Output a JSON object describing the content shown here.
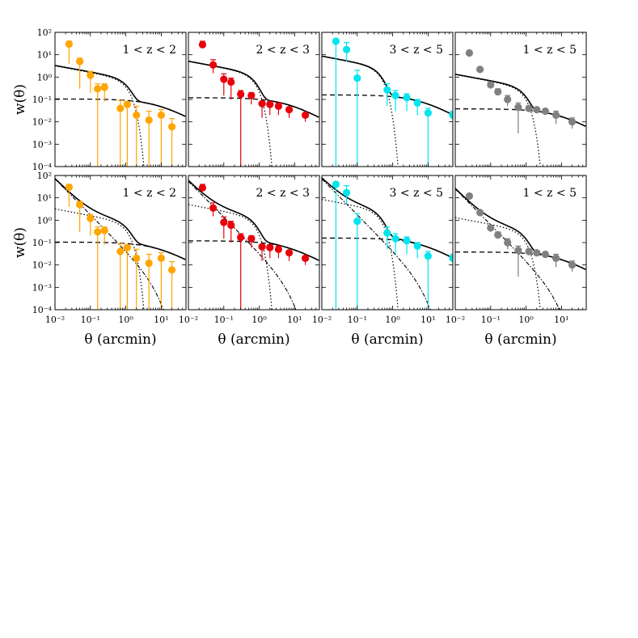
{
  "figure": {
    "xlabel": "θ (arcmin)",
    "ylabel": "w(θ)",
    "xscale": "log",
    "yscale": "log",
    "xlim": [
      0.01,
      50
    ],
    "ylim": [
      0.0001,
      100
    ],
    "x_tick_labels": [
      "10⁻²",
      "10⁻¹",
      "10⁰",
      "10¹"
    ],
    "y_tick_labels": [
      "10⁻⁴",
      "10⁻³",
      "10⁻²",
      "10⁻¹",
      "10⁰",
      "10¹",
      "10²"
    ]
  },
  "chart_data": [
    {
      "type": "scatter",
      "row": 0,
      "col": 0,
      "label": "1 < z < 2",
      "color": "#ffa500",
      "x": [
        0.025,
        0.05,
        0.1,
        0.16,
        0.25,
        0.7,
        1.1,
        2.0,
        4.5,
        10,
        20
      ],
      "y": [
        30,
        5,
        1.2,
        0.3,
        0.35,
        0.04,
        0.06,
        0.02,
        0.012,
        0.02,
        0.006
      ],
      "err_lo_to": [
        4,
        0.3,
        0.2,
        0.0001,
        0.08,
        0.0001,
        0.0001,
        0.0001,
        0.0001,
        0.0001,
        0.0001
      ],
      "err_hi_to": [
        40,
        7,
        1.8,
        0.5,
        0.5,
        0.09,
        0.08,
        0.05,
        0.03,
        0.035,
        0.014
      ],
      "curves": [
        "total",
        "one-halo",
        "two-halo"
      ]
    },
    {
      "type": "scatter",
      "row": 0,
      "col": 1,
      "label": "2 < z < 3",
      "color": "#e8000b",
      "x": [
        0.025,
        0.05,
        0.1,
        0.16,
        0.3,
        0.6,
        1.2,
        2.0,
        3.5,
        7,
        20
      ],
      "y": [
        28,
        3.5,
        0.8,
        0.6,
        0.17,
        0.15,
        0.065,
        0.06,
        0.05,
        0.035,
        0.02
      ],
      "err_lo_to": [
        20,
        1.5,
        0.15,
        0.1,
        0.0001,
        0.06,
        0.015,
        0.02,
        0.02,
        0.015,
        0.01
      ],
      "err_hi_to": [
        40,
        6,
        1.4,
        0.9,
        0.25,
        0.2,
        0.08,
        0.08,
        0.07,
        0.045,
        0.025
      ],
      "curves": [
        "total",
        "one-halo",
        "two-halo"
      ]
    },
    {
      "type": "scatter",
      "row": 0,
      "col": 2,
      "label": "3 < z < 5",
      "color": "#00e5ee",
      "x": [
        0.025,
        0.05,
        0.1,
        0.7,
        1.2,
        2.5,
        5,
        10,
        50
      ],
      "y": [
        40,
        17,
        0.9,
        0.27,
        0.15,
        0.12,
        0.07,
        0.025,
        0.02
      ],
      "err_lo_to": [
        0.0001,
        5,
        0.0001,
        0.05,
        0.03,
        0.03,
        0.02,
        0.0001,
        0.0001
      ],
      "err_hi_to": [
        45,
        35,
        2,
        0.5,
        0.25,
        0.18,
        0.1,
        0.04,
        0.03
      ],
      "curves": [
        "total",
        "one-halo",
        "two-halo"
      ]
    },
    {
      "type": "scatter",
      "row": 0,
      "col": 3,
      "label": "1 < z < 5",
      "color": "#808080",
      "x": [
        0.025,
        0.05,
        0.1,
        0.16,
        0.3,
        0.6,
        1.2,
        2.0,
        3.5,
        7,
        20
      ],
      "y": [
        12,
        2.2,
        0.45,
        0.22,
        0.1,
        0.045,
        0.04,
        0.035,
        0.03,
        0.02,
        0.01
      ],
      "err_lo_to": [
        12,
        2.2,
        0.3,
        0.15,
        0.05,
        0.003,
        0.03,
        0.035,
        0.03,
        0.008,
        0.005
      ],
      "err_hi_to": [
        12,
        2.2,
        0.6,
        0.3,
        0.15,
        0.07,
        0.05,
        0.035,
        0.03,
        0.03,
        0.015
      ],
      "curves": [
        "total",
        "one-halo",
        "two-halo"
      ]
    },
    {
      "type": "scatter",
      "row": 1,
      "col": 0,
      "label": "1 < z < 2",
      "color": "#ffa500",
      "x": [
        0.025,
        0.05,
        0.1,
        0.16,
        0.25,
        0.7,
        1.1,
        2.0,
        4.5,
        10,
        20
      ],
      "y": [
        30,
        5,
        1.2,
        0.3,
        0.35,
        0.04,
        0.06,
        0.02,
        0.012,
        0.02,
        0.006
      ],
      "err_lo_to": [
        4,
        0.3,
        0.2,
        0.0001,
        0.08,
        0.0001,
        0.0001,
        0.0001,
        0.0001,
        0.0001,
        0.0001
      ],
      "err_hi_to": [
        40,
        7,
        1.8,
        0.5,
        0.5,
        0.09,
        0.08,
        0.05,
        0.03,
        0.035,
        0.014
      ],
      "curves": [
        "total",
        "one-halo",
        "two-halo",
        "extra"
      ]
    },
    {
      "type": "scatter",
      "row": 1,
      "col": 1,
      "label": "2 < z < 3",
      "color": "#e8000b",
      "x": [
        0.025,
        0.05,
        0.1,
        0.16,
        0.3,
        0.6,
        1.2,
        2.0,
        3.5,
        7,
        20
      ],
      "y": [
        28,
        3.5,
        0.8,
        0.6,
        0.17,
        0.15,
        0.065,
        0.06,
        0.05,
        0.035,
        0.02
      ],
      "err_lo_to": [
        20,
        1.5,
        0.15,
        0.1,
        0.0001,
        0.06,
        0.015,
        0.02,
        0.02,
        0.015,
        0.01
      ],
      "err_hi_to": [
        40,
        6,
        1.4,
        0.9,
        0.25,
        0.2,
        0.08,
        0.08,
        0.07,
        0.045,
        0.025
      ],
      "curves": [
        "total",
        "one-halo",
        "two-halo",
        "extra"
      ]
    },
    {
      "type": "scatter",
      "row": 1,
      "col": 2,
      "label": "3 < z < 5",
      "color": "#00e5ee",
      "x": [
        0.025,
        0.05,
        0.1,
        0.7,
        1.2,
        2.5,
        5,
        10,
        50
      ],
      "y": [
        40,
        17,
        0.9,
        0.27,
        0.15,
        0.12,
        0.07,
        0.025,
        0.02
      ],
      "err_lo_to": [
        0.0001,
        5,
        0.0001,
        0.05,
        0.03,
        0.03,
        0.02,
        0.0001,
        0.0001
      ],
      "err_hi_to": [
        45,
        35,
        2,
        0.5,
        0.25,
        0.18,
        0.1,
        0.04,
        0.03
      ],
      "curves": [
        "total",
        "one-halo",
        "two-halo",
        "extra"
      ]
    },
    {
      "type": "scatter",
      "row": 1,
      "col": 3,
      "label": "1 < z < 5",
      "color": "#808080",
      "x": [
        0.025,
        0.05,
        0.1,
        0.16,
        0.3,
        0.6,
        1.2,
        2.0,
        3.5,
        7,
        20
      ],
      "y": [
        12,
        2.2,
        0.45,
        0.22,
        0.1,
        0.045,
        0.04,
        0.035,
        0.03,
        0.02,
        0.01
      ],
      "err_lo_to": [
        12,
        1.5,
        0.3,
        0.15,
        0.05,
        0.003,
        0.03,
        0.035,
        0.03,
        0.008,
        0.005
      ],
      "err_hi_to": [
        12,
        2.2,
        0.6,
        0.3,
        0.15,
        0.07,
        0.05,
        0.035,
        0.03,
        0.03,
        0.015
      ],
      "curves": [
        "total",
        "one-halo",
        "two-halo",
        "extra"
      ]
    }
  ]
}
